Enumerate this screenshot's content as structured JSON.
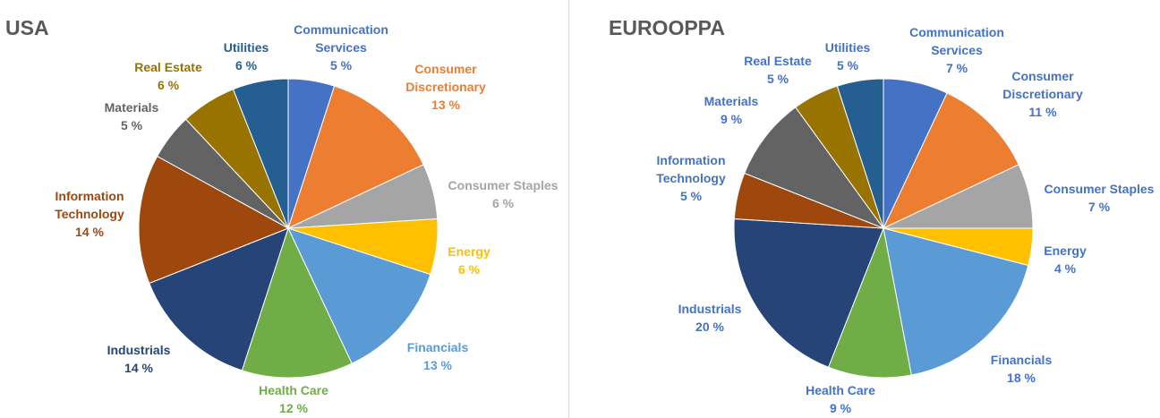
{
  "chart_data": [
    {
      "type": "pie",
      "title": "USA",
      "label_color_mode": "per-slice",
      "slices": [
        {
          "category": "Communication Services",
          "label_lines": [
            "Communication",
            "Services"
          ],
          "pct_label": "5 %",
          "value": 5,
          "color": "#4472c4",
          "label_color": "#4472c4"
        },
        {
          "category": "Consumer Discretionary",
          "label_lines": [
            "Consumer",
            "Discretionary"
          ],
          "pct_label": "13 %",
          "value": 13,
          "color": "#ed7d31",
          "label_color": "#ed7d31"
        },
        {
          "category": "Consumer Staples",
          "label_lines": [
            "Consumer Staples"
          ],
          "pct_label": "6 %",
          "value": 6,
          "color": "#a5a5a5",
          "label_color": "#a5a5a5"
        },
        {
          "category": "Energy",
          "label_lines": [
            "Energy"
          ],
          "pct_label": "6 %",
          "value": 6,
          "color": "#ffc000",
          "label_color": "#ffc000"
        },
        {
          "category": "Financials",
          "label_lines": [
            "Financials"
          ],
          "pct_label": "13 %",
          "value": 13,
          "color": "#5b9bd5",
          "label_color": "#5b9bd5"
        },
        {
          "category": "Health Care",
          "label_lines": [
            "Health Care"
          ],
          "pct_label": "12 %",
          "value": 12,
          "color": "#70ad47",
          "label_color": "#70ad47"
        },
        {
          "category": "Industrials",
          "label_lines": [
            "Industrials"
          ],
          "pct_label": "14 %",
          "value": 14,
          "color": "#264478",
          "label_color": "#264478"
        },
        {
          "category": "Information Technology",
          "label_lines": [
            "Information",
            "Technology"
          ],
          "pct_label": "14 %",
          "value": 14,
          "color": "#9e480e",
          "label_color": "#9e480e"
        },
        {
          "category": "Materials",
          "label_lines": [
            "Materials"
          ],
          "pct_label": "5 %",
          "value": 5,
          "color": "#636363",
          "label_color": "#636363"
        },
        {
          "category": "Real Estate",
          "label_lines": [
            "Real Estate"
          ],
          "pct_label": "6 %",
          "value": 6,
          "color": "#997300",
          "label_color": "#997300"
        },
        {
          "category": "Utilities",
          "label_lines": [
            "Utilities"
          ],
          "pct_label": "6 %",
          "value": 6,
          "color": "#255e91",
          "label_color": "#255e91"
        }
      ]
    },
    {
      "type": "pie",
      "title": "EUROOPPA",
      "label_color_mode": "uniform",
      "slices": [
        {
          "category": "Communication Services",
          "label_lines": [
            "Communication",
            "Services"
          ],
          "pct_label": "7 %",
          "value": 7,
          "color": "#4472c4",
          "label_color": "#4472c4"
        },
        {
          "category": "Consumer Discretionary",
          "label_lines": [
            "Consumer",
            "Discretionary"
          ],
          "pct_label": "11 %",
          "value": 11,
          "color": "#ed7d31",
          "label_color": "#4472c4"
        },
        {
          "category": "Consumer Staples",
          "label_lines": [
            "Consumer Staples"
          ],
          "pct_label": "7 %",
          "value": 7,
          "color": "#a5a5a5",
          "label_color": "#4472c4"
        },
        {
          "category": "Energy",
          "label_lines": [
            "Energy"
          ],
          "pct_label": "4 %",
          "value": 4,
          "color": "#ffc000",
          "label_color": "#4472c4"
        },
        {
          "category": "Financials",
          "label_lines": [
            "Financials"
          ],
          "pct_label": "18 %",
          "value": 18,
          "color": "#5b9bd5",
          "label_color": "#4472c4"
        },
        {
          "category": "Health Care",
          "label_lines": [
            "Health Care"
          ],
          "pct_label": "9 %",
          "value": 9,
          "color": "#70ad47",
          "label_color": "#4472c4"
        },
        {
          "category": "Industrials",
          "label_lines": [
            "Industrials"
          ],
          "pct_label": "20 %",
          "value": 20,
          "color": "#264478",
          "label_color": "#4472c4"
        },
        {
          "category": "Information Technology",
          "label_lines": [
            "Information",
            "Technology"
          ],
          "pct_label": "5 %",
          "value": 5,
          "color": "#9e480e",
          "label_color": "#4472c4"
        },
        {
          "category": "Materials",
          "label_lines": [
            "Materials"
          ],
          "pct_label": "9 %",
          "value": 9,
          "color": "#636363",
          "label_color": "#4472c4"
        },
        {
          "category": "Real Estate",
          "label_lines": [
            "Real Estate"
          ],
          "pct_label": "5 %",
          "value": 5,
          "color": "#997300",
          "label_color": "#4472c4"
        },
        {
          "category": "Utilities",
          "label_lines": [
            "Utilities"
          ],
          "pct_label": "5 %",
          "value": 5,
          "color": "#255e91",
          "label_color": "#4472c4"
        }
      ]
    }
  ]
}
